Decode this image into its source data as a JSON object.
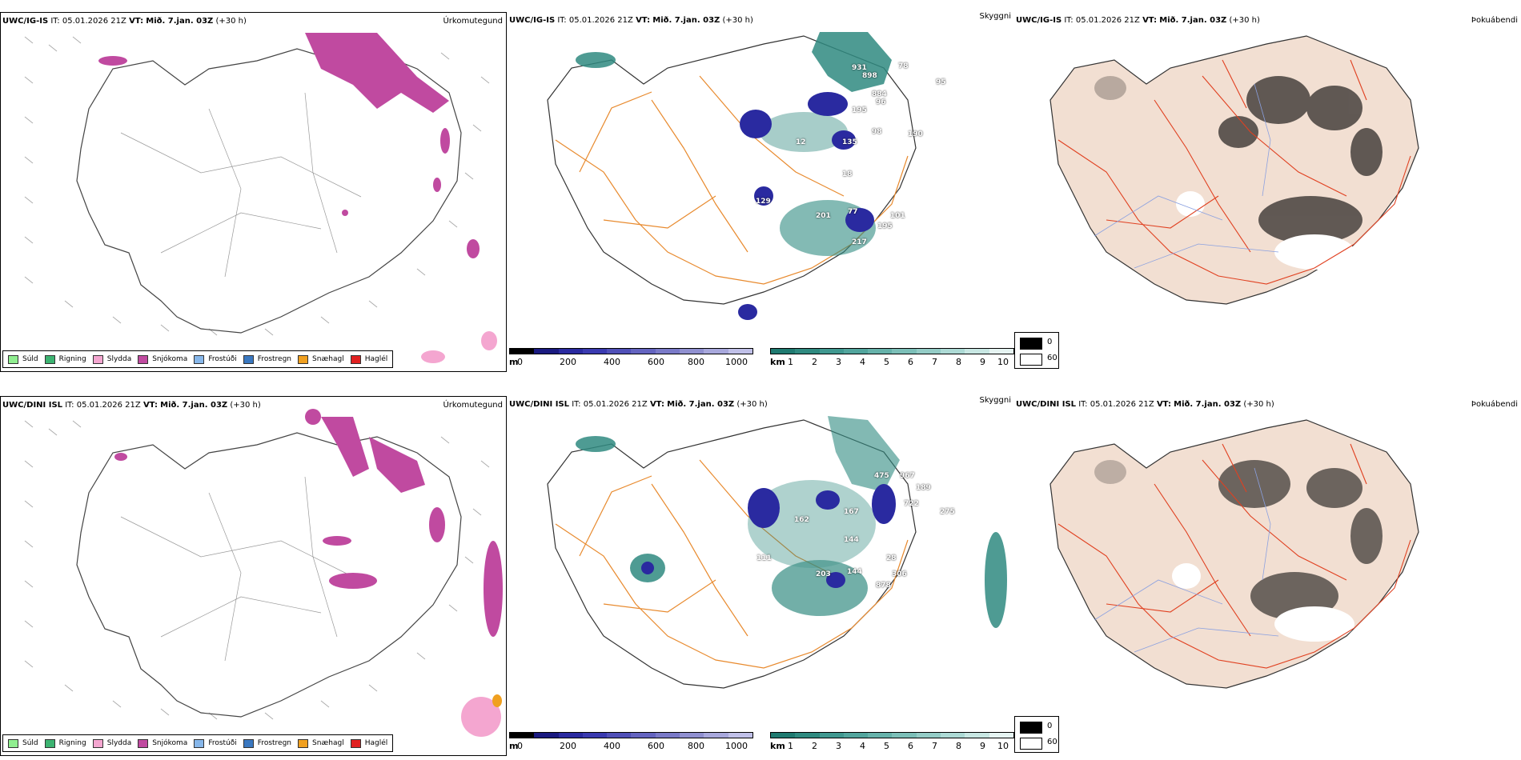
{
  "rows": [
    {
      "model": "UWC/IG-IS",
      "it_label": "IT:",
      "it_value": "05.01.2026 21Z",
      "vt_label": "VT:",
      "vt_value": "Mið. 7.jan. 03Z",
      "lead": "(+30 h)",
      "precip_title": "Úrkomutegund",
      "cloud_title": "Skyggni",
      "fog_title": "Þokuábendi",
      "labels": [
        "931",
        "898",
        "78",
        "884",
        "95",
        "195",
        "96",
        "98",
        "190",
        "12",
        "135",
        "18",
        "129",
        "201",
        "77",
        "217",
        "195",
        "101"
      ]
    },
    {
      "model": "UWC/DINI ISL",
      "it_label": "IT:",
      "it_value": "05.01.2026 21Z",
      "vt_label": "VT:",
      "vt_value": "Mið. 7.jan. 03Z",
      "lead": "(+30 h)",
      "precip_title": "Úrkomutegund",
      "cloud_title": "Skyggni",
      "fog_title": "Þokuábendi",
      "labels": [
        "475",
        "967",
        "189",
        "722",
        "275",
        "162",
        "167",
        "144",
        "111",
        "203",
        "144",
        "306",
        "878",
        "28"
      ]
    }
  ],
  "precip_legend": [
    {
      "label": "Súld",
      "color": "#90ee90"
    },
    {
      "label": "Rigning",
      "color": "#3cb371"
    },
    {
      "label": "Slydda",
      "color": "#f4a6d0"
    },
    {
      "label": "Snjókoma",
      "color": "#c04aa0"
    },
    {
      "label": "Frostúði",
      "color": "#87b7ea"
    },
    {
      "label": "Frostregn",
      "color": "#3a78c0"
    },
    {
      "label": "Snæhagl",
      "color": "#f0a020"
    },
    {
      "label": "Haglél",
      "color": "#e02020"
    }
  ],
  "height_scale": {
    "unit": "m",
    "ticks": [
      "0",
      "200",
      "400",
      "600",
      "800",
      "1000"
    ],
    "colors": [
      "#000000",
      "#1a1a80",
      "#2a2aa0",
      "#3a3ab0",
      "#5050b8",
      "#6464c0",
      "#7a7ac8",
      "#9090d0",
      "#a8a8dc",
      "#c0c0e8"
    ]
  },
  "vis_scale": {
    "unit": "km",
    "ticks": [
      "1",
      "2",
      "3",
      "4",
      "5",
      "6",
      "7",
      "8",
      "9",
      "10"
    ],
    "colors": [
      "#1f7a70",
      "#2f8a80",
      "#409890",
      "#52a59d",
      "#66b2aa",
      "#7cbfb8",
      "#94ccc6",
      "#addad5",
      "#c8e7e3",
      "#e6f4f2"
    ]
  },
  "fog_scale": {
    "items": [
      {
        "label": "0",
        "color": "#000000"
      },
      {
        "label": "60",
        "color": "#ffffff"
      }
    ]
  }
}
